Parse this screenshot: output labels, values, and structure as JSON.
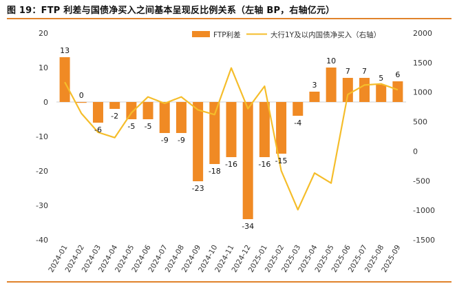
{
  "title": "图 19：FTP 利差与国债净买入之间基本呈现反比例关系（左轴 BP，右轴亿元）",
  "chart_data": {
    "type": "bar+line",
    "categories": [
      "2024-01",
      "2024-02",
      "2024-03",
      "2024-04",
      "2024-05",
      "2024-06",
      "2024-07",
      "2024-08",
      "2024-09",
      "2024-10",
      "2024-11",
      "2024-12",
      "2025-01",
      "2025-02",
      "2025-03",
      "2025-04",
      "2025-05",
      "2025-06",
      "2025-07",
      "2025-08",
      "2025-09"
    ],
    "series": [
      {
        "name": "FTP利差",
        "type": "bar",
        "axis": "left",
        "values": [
          13,
          0,
          -6,
          -2,
          -5,
          -5,
          -9,
          -9,
          -23,
          -18,
          -16,
          -34,
          -16,
          -15,
          -4,
          3,
          10,
          7,
          7,
          5,
          6
        ],
        "labels": [
          "13",
          "0",
          "-6",
          "-2",
          "-5",
          "-5",
          "-9",
          "-9",
          "-23",
          "-18",
          "-16",
          "-34",
          "-16",
          "-15",
          "-4",
          "3",
          "10",
          "7",
          "7",
          "5",
          "6"
        ],
        "color": "#f08a24"
      },
      {
        "name": "大行1Y及以内国债净买入（右轴）",
        "type": "line",
        "axis": "right",
        "values": [
          1170,
          640,
          320,
          230,
          650,
          920,
          810,
          920,
          700,
          620,
          1410,
          720,
          1100,
          -330,
          -990,
          -370,
          -540,
          960,
          1120,
          1140,
          1040
        ],
        "color": "#f5bd2a"
      }
    ],
    "left_axis": {
      "min": -40,
      "max": 20,
      "ticks": [
        -40,
        -30,
        -20,
        -10,
        0,
        10,
        20
      ]
    },
    "right_axis": {
      "min": -1500,
      "max": 2000,
      "ticks": [
        -1500,
        -1000,
        -500,
        0,
        500,
        1000,
        1500,
        2000
      ]
    },
    "legend_position": "top-right",
    "grid": false
  }
}
